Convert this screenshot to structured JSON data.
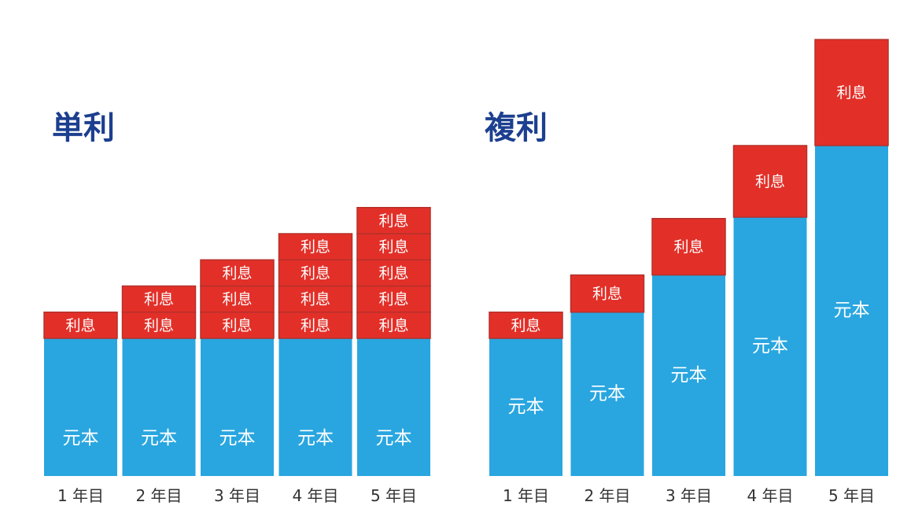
{
  "colors": {
    "principal": "#29a6e0",
    "interest": "#e23029",
    "title": "#1c3f8f",
    "segment_border": "#b5302a"
  },
  "chart_data": [
    {
      "type": "bar",
      "stacked": true,
      "title": "単利",
      "categories": [
        "1 年目",
        "2 年目",
        "3 年目",
        "4 年目",
        "5 年目"
      ],
      "principal_label": "元本",
      "interest_label": "利息",
      "principal": [
        100,
        100,
        100,
        100,
        100
      ],
      "interest_blocks": [
        [
          19
        ],
        [
          19,
          19
        ],
        [
          19,
          19,
          19
        ],
        [
          19,
          19,
          19,
          19
        ],
        [
          19,
          19,
          19,
          19,
          19
        ]
      ],
      "xlabel": "",
      "ylabel": "",
      "grid": false
    },
    {
      "type": "bar",
      "stacked": true,
      "title": "複利",
      "categories": [
        "1 年目",
        "2 年目",
        "3 年目",
        "4 年目",
        "5 年目"
      ],
      "principal_label": "元本",
      "interest_label": "利息",
      "principal": [
        100,
        119,
        146,
        188,
        240
      ],
      "interest_blocks": [
        [
          19
        ],
        [
          27
        ],
        [
          41
        ],
        [
          52
        ],
        [
          77
        ]
      ],
      "xlabel": "",
      "ylabel": "",
      "grid": false
    }
  ]
}
